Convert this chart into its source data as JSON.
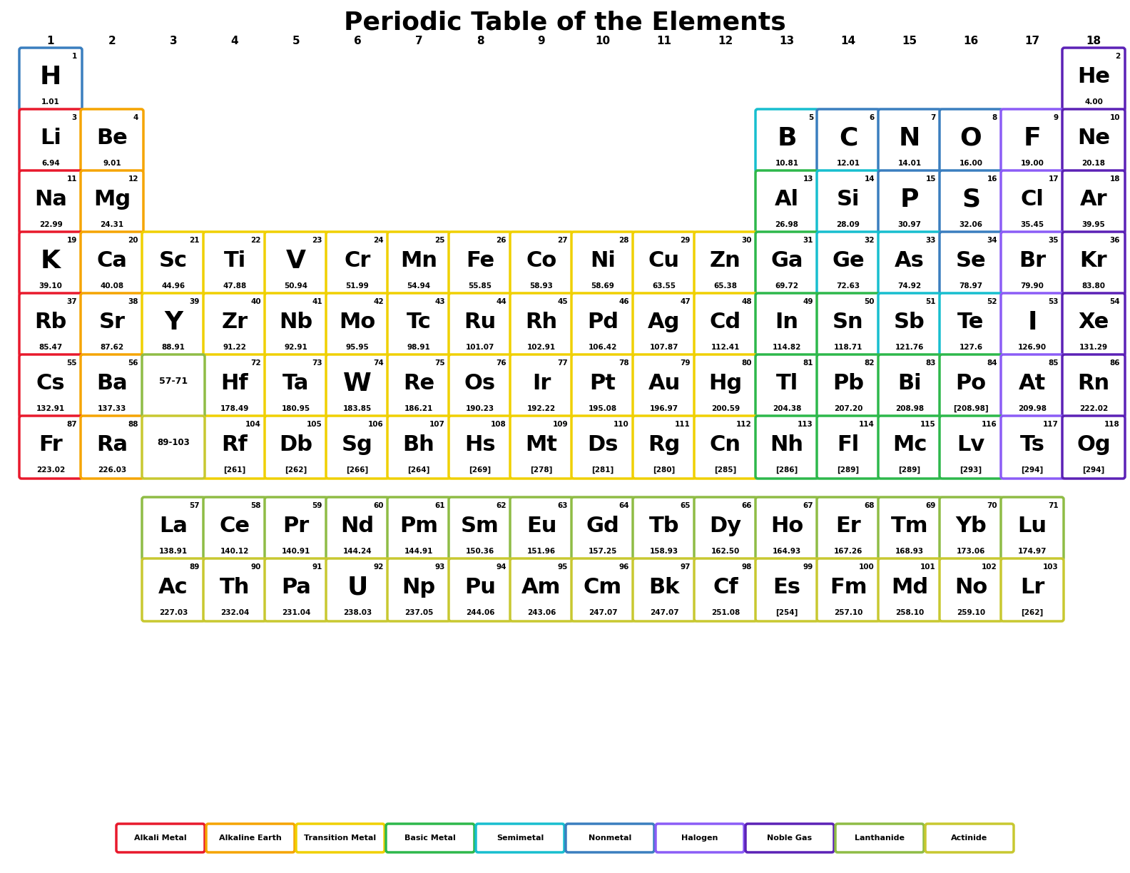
{
  "title": "Periodic Table of the Elements",
  "background": "#ffffff",
  "colors": {
    "alkali": "#e8192c",
    "alkaline": "#f5a400",
    "transition": "#f0d000",
    "basic_metal": "#2db84b",
    "semimetal": "#17becf",
    "nonmetal": "#3a7ebf",
    "halogen": "#8b5cf6",
    "noble": "#5b21b6",
    "lanthanide": "#8fbc45",
    "actinide": "#c8c830"
  },
  "elements": [
    {
      "symbol": "H",
      "number": 1,
      "mass": "1.01",
      "col": 1,
      "row": 1,
      "type": "nonmetal"
    },
    {
      "symbol": "He",
      "number": 2,
      "mass": "4.00",
      "col": 18,
      "row": 1,
      "type": "noble"
    },
    {
      "symbol": "Li",
      "number": 3,
      "mass": "6.94",
      "col": 1,
      "row": 2,
      "type": "alkali"
    },
    {
      "symbol": "Be",
      "number": 4,
      "mass": "9.01",
      "col": 2,
      "row": 2,
      "type": "alkaline"
    },
    {
      "symbol": "B",
      "number": 5,
      "mass": "10.81",
      "col": 13,
      "row": 2,
      "type": "semimetal"
    },
    {
      "symbol": "C",
      "number": 6,
      "mass": "12.01",
      "col": 14,
      "row": 2,
      "type": "nonmetal"
    },
    {
      "symbol": "N",
      "number": 7,
      "mass": "14.01",
      "col": 15,
      "row": 2,
      "type": "nonmetal"
    },
    {
      "symbol": "O",
      "number": 8,
      "mass": "16.00",
      "col": 16,
      "row": 2,
      "type": "nonmetal"
    },
    {
      "symbol": "F",
      "number": 9,
      "mass": "19.00",
      "col": 17,
      "row": 2,
      "type": "halogen"
    },
    {
      "symbol": "Ne",
      "number": 10,
      "mass": "20.18",
      "col": 18,
      "row": 2,
      "type": "noble"
    },
    {
      "symbol": "Na",
      "number": 11,
      "mass": "22.99",
      "col": 1,
      "row": 3,
      "type": "alkali"
    },
    {
      "symbol": "Mg",
      "number": 12,
      "mass": "24.31",
      "col": 2,
      "row": 3,
      "type": "alkaline"
    },
    {
      "symbol": "Al",
      "number": 13,
      "mass": "26.98",
      "col": 13,
      "row": 3,
      "type": "basic_metal"
    },
    {
      "symbol": "Si",
      "number": 14,
      "mass": "28.09",
      "col": 14,
      "row": 3,
      "type": "semimetal"
    },
    {
      "symbol": "P",
      "number": 15,
      "mass": "30.97",
      "col": 15,
      "row": 3,
      "type": "nonmetal"
    },
    {
      "symbol": "S",
      "number": 16,
      "mass": "32.06",
      "col": 16,
      "row": 3,
      "type": "nonmetal"
    },
    {
      "symbol": "Cl",
      "number": 17,
      "mass": "35.45",
      "col": 17,
      "row": 3,
      "type": "halogen"
    },
    {
      "symbol": "Ar",
      "number": 18,
      "mass": "39.95",
      "col": 18,
      "row": 3,
      "type": "noble"
    },
    {
      "symbol": "K",
      "number": 19,
      "mass": "39.10",
      "col": 1,
      "row": 4,
      "type": "alkali"
    },
    {
      "symbol": "Ca",
      "number": 20,
      "mass": "40.08",
      "col": 2,
      "row": 4,
      "type": "alkaline"
    },
    {
      "symbol": "Sc",
      "number": 21,
      "mass": "44.96",
      "col": 3,
      "row": 4,
      "type": "transition"
    },
    {
      "symbol": "Ti",
      "number": 22,
      "mass": "47.88",
      "col": 4,
      "row": 4,
      "type": "transition"
    },
    {
      "symbol": "V",
      "number": 23,
      "mass": "50.94",
      "col": 5,
      "row": 4,
      "type": "transition"
    },
    {
      "symbol": "Cr",
      "number": 24,
      "mass": "51.99",
      "col": 6,
      "row": 4,
      "type": "transition"
    },
    {
      "symbol": "Mn",
      "number": 25,
      "mass": "54.94",
      "col": 7,
      "row": 4,
      "type": "transition"
    },
    {
      "symbol": "Fe",
      "number": 26,
      "mass": "55.85",
      "col": 8,
      "row": 4,
      "type": "transition"
    },
    {
      "symbol": "Co",
      "number": 27,
      "mass": "58.93",
      "col": 9,
      "row": 4,
      "type": "transition"
    },
    {
      "symbol": "Ni",
      "number": 28,
      "mass": "58.69",
      "col": 10,
      "row": 4,
      "type": "transition"
    },
    {
      "symbol": "Cu",
      "number": 29,
      "mass": "63.55",
      "col": 11,
      "row": 4,
      "type": "transition"
    },
    {
      "symbol": "Zn",
      "number": 30,
      "mass": "65.38",
      "col": 12,
      "row": 4,
      "type": "transition"
    },
    {
      "symbol": "Ga",
      "number": 31,
      "mass": "69.72",
      "col": 13,
      "row": 4,
      "type": "basic_metal"
    },
    {
      "symbol": "Ge",
      "number": 32,
      "mass": "72.63",
      "col": 14,
      "row": 4,
      "type": "semimetal"
    },
    {
      "symbol": "As",
      "number": 33,
      "mass": "74.92",
      "col": 15,
      "row": 4,
      "type": "semimetal"
    },
    {
      "symbol": "Se",
      "number": 34,
      "mass": "78.97",
      "col": 16,
      "row": 4,
      "type": "nonmetal"
    },
    {
      "symbol": "Br",
      "number": 35,
      "mass": "79.90",
      "col": 17,
      "row": 4,
      "type": "halogen"
    },
    {
      "symbol": "Kr",
      "number": 36,
      "mass": "83.80",
      "col": 18,
      "row": 4,
      "type": "noble"
    },
    {
      "symbol": "Rb",
      "number": 37,
      "mass": "85.47",
      "col": 1,
      "row": 5,
      "type": "alkali"
    },
    {
      "symbol": "Sr",
      "number": 38,
      "mass": "87.62",
      "col": 2,
      "row": 5,
      "type": "alkaline"
    },
    {
      "symbol": "Y",
      "number": 39,
      "mass": "88.91",
      "col": 3,
      "row": 5,
      "type": "transition"
    },
    {
      "symbol": "Zr",
      "number": 40,
      "mass": "91.22",
      "col": 4,
      "row": 5,
      "type": "transition"
    },
    {
      "symbol": "Nb",
      "number": 41,
      "mass": "92.91",
      "col": 5,
      "row": 5,
      "type": "transition"
    },
    {
      "symbol": "Mo",
      "number": 42,
      "mass": "95.95",
      "col": 6,
      "row": 5,
      "type": "transition"
    },
    {
      "symbol": "Tc",
      "number": 43,
      "mass": "98.91",
      "col": 7,
      "row": 5,
      "type": "transition"
    },
    {
      "symbol": "Ru",
      "number": 44,
      "mass": "101.07",
      "col": 8,
      "row": 5,
      "type": "transition"
    },
    {
      "symbol": "Rh",
      "number": 45,
      "mass": "102.91",
      "col": 9,
      "row": 5,
      "type": "transition"
    },
    {
      "symbol": "Pd",
      "number": 46,
      "mass": "106.42",
      "col": 10,
      "row": 5,
      "type": "transition"
    },
    {
      "symbol": "Ag",
      "number": 47,
      "mass": "107.87",
      "col": 11,
      "row": 5,
      "type": "transition"
    },
    {
      "symbol": "Cd",
      "number": 48,
      "mass": "112.41",
      "col": 12,
      "row": 5,
      "type": "transition"
    },
    {
      "symbol": "In",
      "number": 49,
      "mass": "114.82",
      "col": 13,
      "row": 5,
      "type": "basic_metal"
    },
    {
      "symbol": "Sn",
      "number": 50,
      "mass": "118.71",
      "col": 14,
      "row": 5,
      "type": "basic_metal"
    },
    {
      "symbol": "Sb",
      "number": 51,
      "mass": "121.76",
      "col": 15,
      "row": 5,
      "type": "semimetal"
    },
    {
      "symbol": "Te",
      "number": 52,
      "mass": "127.6",
      "col": 16,
      "row": 5,
      "type": "semimetal"
    },
    {
      "symbol": "I",
      "number": 53,
      "mass": "126.90",
      "col": 17,
      "row": 5,
      "type": "halogen"
    },
    {
      "symbol": "Xe",
      "number": 54,
      "mass": "131.29",
      "col": 18,
      "row": 5,
      "type": "noble"
    },
    {
      "symbol": "Cs",
      "number": 55,
      "mass": "132.91",
      "col": 1,
      "row": 6,
      "type": "alkali"
    },
    {
      "symbol": "Ba",
      "number": 56,
      "mass": "137.33",
      "col": 2,
      "row": 6,
      "type": "alkaline"
    },
    {
      "symbol": "Hf",
      "number": 72,
      "mass": "178.49",
      "col": 4,
      "row": 6,
      "type": "transition"
    },
    {
      "symbol": "Ta",
      "number": 73,
      "mass": "180.95",
      "col": 5,
      "row": 6,
      "type": "transition"
    },
    {
      "symbol": "W",
      "number": 74,
      "mass": "183.85",
      "col": 6,
      "row": 6,
      "type": "transition"
    },
    {
      "symbol": "Re",
      "number": 75,
      "mass": "186.21",
      "col": 7,
      "row": 6,
      "type": "transition"
    },
    {
      "symbol": "Os",
      "number": 76,
      "mass": "190.23",
      "col": 8,
      "row": 6,
      "type": "transition"
    },
    {
      "symbol": "Ir",
      "number": 77,
      "mass": "192.22",
      "col": 9,
      "row": 6,
      "type": "transition"
    },
    {
      "symbol": "Pt",
      "number": 78,
      "mass": "195.08",
      "col": 10,
      "row": 6,
      "type": "transition"
    },
    {
      "symbol": "Au",
      "number": 79,
      "mass": "196.97",
      "col": 11,
      "row": 6,
      "type": "transition"
    },
    {
      "symbol": "Hg",
      "number": 80,
      "mass": "200.59",
      "col": 12,
      "row": 6,
      "type": "transition"
    },
    {
      "symbol": "Tl",
      "number": 81,
      "mass": "204.38",
      "col": 13,
      "row": 6,
      "type": "basic_metal"
    },
    {
      "symbol": "Pb",
      "number": 82,
      "mass": "207.20",
      "col": 14,
      "row": 6,
      "type": "basic_metal"
    },
    {
      "symbol": "Bi",
      "number": 83,
      "mass": "208.98",
      "col": 15,
      "row": 6,
      "type": "basic_metal"
    },
    {
      "symbol": "Po",
      "number": 84,
      "mass": "[208.98]",
      "col": 16,
      "row": 6,
      "type": "basic_metal"
    },
    {
      "symbol": "At",
      "number": 85,
      "mass": "209.98",
      "col": 17,
      "row": 6,
      "type": "halogen"
    },
    {
      "symbol": "Rn",
      "number": 86,
      "mass": "222.02",
      "col": 18,
      "row": 6,
      "type": "noble"
    },
    {
      "symbol": "Fr",
      "number": 87,
      "mass": "223.02",
      "col": 1,
      "row": 7,
      "type": "alkali"
    },
    {
      "symbol": "Ra",
      "number": 88,
      "mass": "226.03",
      "col": 2,
      "row": 7,
      "type": "alkaline"
    },
    {
      "symbol": "Rf",
      "number": 104,
      "mass": "[261]",
      "col": 4,
      "row": 7,
      "type": "transition"
    },
    {
      "symbol": "Db",
      "number": 105,
      "mass": "[262]",
      "col": 5,
      "row": 7,
      "type": "transition"
    },
    {
      "symbol": "Sg",
      "number": 106,
      "mass": "[266]",
      "col": 6,
      "row": 7,
      "type": "transition"
    },
    {
      "symbol": "Bh",
      "number": 107,
      "mass": "[264]",
      "col": 7,
      "row": 7,
      "type": "transition"
    },
    {
      "symbol": "Hs",
      "number": 108,
      "mass": "[269]",
      "col": 8,
      "row": 7,
      "type": "transition"
    },
    {
      "symbol": "Mt",
      "number": 109,
      "mass": "[278]",
      "col": 9,
      "row": 7,
      "type": "transition"
    },
    {
      "symbol": "Ds",
      "number": 110,
      "mass": "[281]",
      "col": 10,
      "row": 7,
      "type": "transition"
    },
    {
      "symbol": "Rg",
      "number": 111,
      "mass": "[280]",
      "col": 11,
      "row": 7,
      "type": "transition"
    },
    {
      "symbol": "Cn",
      "number": 112,
      "mass": "[285]",
      "col": 12,
      "row": 7,
      "type": "transition"
    },
    {
      "symbol": "Nh",
      "number": 113,
      "mass": "[286]",
      "col": 13,
      "row": 7,
      "type": "basic_metal"
    },
    {
      "symbol": "Fl",
      "number": 114,
      "mass": "[289]",
      "col": 14,
      "row": 7,
      "type": "basic_metal"
    },
    {
      "symbol": "Mc",
      "number": 115,
      "mass": "[289]",
      "col": 15,
      "row": 7,
      "type": "basic_metal"
    },
    {
      "symbol": "Lv",
      "number": 116,
      "mass": "[293]",
      "col": 16,
      "row": 7,
      "type": "basic_metal"
    },
    {
      "symbol": "Ts",
      "number": 117,
      "mass": "[294]",
      "col": 17,
      "row": 7,
      "type": "halogen"
    },
    {
      "symbol": "Og",
      "number": 118,
      "mass": "[294]",
      "col": 18,
      "row": 7,
      "type": "noble"
    },
    {
      "symbol": "La",
      "number": 57,
      "mass": "138.91",
      "col": 1,
      "row": 8,
      "type": "lanthanide"
    },
    {
      "symbol": "Ce",
      "number": 58,
      "mass": "140.12",
      "col": 2,
      "row": 8,
      "type": "lanthanide"
    },
    {
      "symbol": "Pr",
      "number": 59,
      "mass": "140.91",
      "col": 3,
      "row": 8,
      "type": "lanthanide"
    },
    {
      "symbol": "Nd",
      "number": 60,
      "mass": "144.24",
      "col": 4,
      "row": 8,
      "type": "lanthanide"
    },
    {
      "symbol": "Pm",
      "number": 61,
      "mass": "144.91",
      "col": 5,
      "row": 8,
      "type": "lanthanide"
    },
    {
      "symbol": "Sm",
      "number": 62,
      "mass": "150.36",
      "col": 6,
      "row": 8,
      "type": "lanthanide"
    },
    {
      "symbol": "Eu",
      "number": 63,
      "mass": "151.96",
      "col": 7,
      "row": 8,
      "type": "lanthanide"
    },
    {
      "symbol": "Gd",
      "number": 64,
      "mass": "157.25",
      "col": 8,
      "row": 8,
      "type": "lanthanide"
    },
    {
      "symbol": "Tb",
      "number": 65,
      "mass": "158.93",
      "col": 9,
      "row": 8,
      "type": "lanthanide"
    },
    {
      "symbol": "Dy",
      "number": 66,
      "mass": "162.50",
      "col": 10,
      "row": 8,
      "type": "lanthanide"
    },
    {
      "symbol": "Ho",
      "number": 67,
      "mass": "164.93",
      "col": 11,
      "row": 8,
      "type": "lanthanide"
    },
    {
      "symbol": "Er",
      "number": 68,
      "mass": "167.26",
      "col": 12,
      "row": 8,
      "type": "lanthanide"
    },
    {
      "symbol": "Tm",
      "number": 69,
      "mass": "168.93",
      "col": 13,
      "row": 8,
      "type": "lanthanide"
    },
    {
      "symbol": "Yb",
      "number": 70,
      "mass": "173.06",
      "col": 14,
      "row": 8,
      "type": "lanthanide"
    },
    {
      "symbol": "Lu",
      "number": 71,
      "mass": "174.97",
      "col": 15,
      "row": 8,
      "type": "lanthanide"
    },
    {
      "symbol": "Ac",
      "number": 89,
      "mass": "227.03",
      "col": 1,
      "row": 9,
      "type": "actinide"
    },
    {
      "symbol": "Th",
      "number": 90,
      "mass": "232.04",
      "col": 2,
      "row": 9,
      "type": "actinide"
    },
    {
      "symbol": "Pa",
      "number": 91,
      "mass": "231.04",
      "col": 3,
      "row": 9,
      "type": "actinide"
    },
    {
      "symbol": "U",
      "number": 92,
      "mass": "238.03",
      "col": 4,
      "row": 9,
      "type": "actinide"
    },
    {
      "symbol": "Np",
      "number": 93,
      "mass": "237.05",
      "col": 5,
      "row": 9,
      "type": "actinide"
    },
    {
      "symbol": "Pu",
      "number": 94,
      "mass": "244.06",
      "col": 6,
      "row": 9,
      "type": "actinide"
    },
    {
      "symbol": "Am",
      "number": 95,
      "mass": "243.06",
      "col": 7,
      "row": 9,
      "type": "actinide"
    },
    {
      "symbol": "Cm",
      "number": 96,
      "mass": "247.07",
      "col": 8,
      "row": 9,
      "type": "actinide"
    },
    {
      "symbol": "Bk",
      "number": 97,
      "mass": "247.07",
      "col": 9,
      "row": 9,
      "type": "actinide"
    },
    {
      "symbol": "Cf",
      "number": 98,
      "mass": "251.08",
      "col": 10,
      "row": 9,
      "type": "actinide"
    },
    {
      "symbol": "Es",
      "number": 99,
      "mass": "[254]",
      "col": 11,
      "row": 9,
      "type": "actinide"
    },
    {
      "symbol": "Fm",
      "number": 100,
      "mass": "257.10",
      "col": 12,
      "row": 9,
      "type": "actinide"
    },
    {
      "symbol": "Md",
      "number": 101,
      "mass": "258.10",
      "col": 13,
      "row": 9,
      "type": "actinide"
    },
    {
      "symbol": "No",
      "number": 102,
      "mass": "259.10",
      "col": 14,
      "row": 9,
      "type": "actinide"
    },
    {
      "symbol": "Lr",
      "number": 103,
      "mass": "[262]",
      "col": 15,
      "row": 9,
      "type": "actinide"
    }
  ],
  "group_labels": [
    1,
    2,
    3,
    4,
    5,
    6,
    7,
    8,
    9,
    10,
    11,
    12,
    13,
    14,
    15,
    16,
    17,
    18
  ],
  "legend": [
    {
      "label": "Alkali Metal",
      "color": "#e8192c"
    },
    {
      "label": "Alkaline Earth",
      "color": "#f5a400"
    },
    {
      "label": "Transition Metal",
      "color": "#f0d000"
    },
    {
      "label": "Basic Metal",
      "color": "#2db84b"
    },
    {
      "label": "Semimetal",
      "color": "#17becf"
    },
    {
      "label": "Nonmetal",
      "color": "#3a7ebf"
    },
    {
      "label": "Halogen",
      "color": "#8b5cf6"
    },
    {
      "label": "Noble Gas",
      "color": "#5b21b6"
    },
    {
      "label": "Lanthanide",
      "color": "#8fbc45"
    },
    {
      "label": "Actinide",
      "color": "#c8c830"
    }
  ]
}
